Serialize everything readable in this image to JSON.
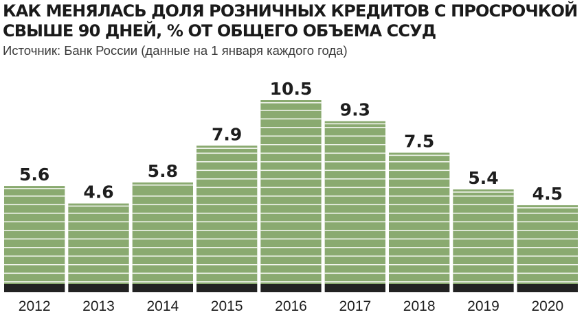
{
  "title": "КАК МЕНЯЛАСЬ ДОЛЯ РОЗНИЧНЫХ КРЕДИТОВ С ПРОСРОЧКОЙ\nСВЫШЕ 90 ДНЕЙ, % ОТ ОБЩЕГО ОБЪЕМА ССУД",
  "subtitle": "Источник: Банк России (данные на 1 января каждого года)",
  "colors": {
    "bar": "#8aaa70",
    "bar_stripe": "#f2f5ee",
    "bar_base": "#222222"
  },
  "chart_data": {
    "type": "bar",
    "title": "КАК МЕНЯЛАСЬ ДОЛЯ РОЗНИЧНЫХ КРЕДИТОВ С ПРОСРОЧКОЙ СВЫШЕ 90 ДНЕЙ, % ОТ ОБЩЕГО ОБЪЕМА ССУД",
    "subtitle": "Источник: Банк России (данные на 1 января каждого года)",
    "categories": [
      "2012",
      "2013",
      "2014",
      "2015",
      "2016",
      "2017",
      "2018",
      "2019",
      "2020"
    ],
    "values": [
      5.6,
      4.6,
      5.8,
      7.9,
      10.5,
      9.3,
      7.5,
      5.4,
      4.5
    ],
    "value_labels": [
      "5.6",
      "4.6",
      "5.8",
      "7.9",
      "10.5",
      "9.3",
      "7.5",
      "5.4",
      "4.5"
    ],
    "xlabel": "",
    "ylabel": "",
    "ylim": [
      0,
      10.5
    ],
    "grid": false,
    "legend": "none"
  }
}
